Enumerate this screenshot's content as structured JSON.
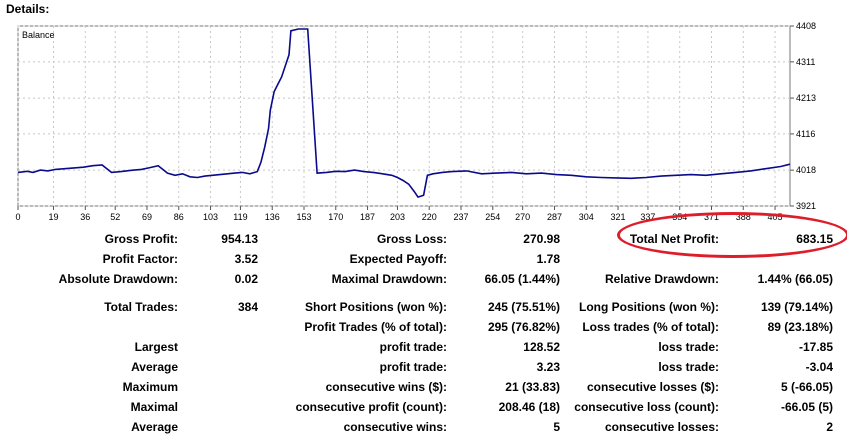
{
  "header": {
    "title": "Details:"
  },
  "chart_data": {
    "type": "line",
    "legend": "Balance",
    "x_ticks": [
      "0",
      "19",
      "36",
      "52",
      "69",
      "86",
      "103",
      "119",
      "136",
      "153",
      "170",
      "187",
      "203",
      "220",
      "237",
      "254",
      "270",
      "287",
      "304",
      "321",
      "337",
      "354",
      "371",
      "388",
      "405"
    ],
    "y_ticks": [
      "4408",
      "4311",
      "4213",
      "4116",
      "4018",
      "3921"
    ],
    "xlim": [
      0,
      413
    ],
    "ylim": [
      3921,
      4408
    ],
    "series": [
      {
        "color": "#0a0a8c",
        "x": [
          0,
          5,
          8,
          12,
          16,
          20,
          25,
          30,
          35,
          40,
          45,
          50,
          55,
          58,
          62,
          66,
          70,
          75,
          80,
          84,
          88,
          92,
          96,
          100,
          104,
          108,
          112,
          116,
          120,
          124,
          128,
          130,
          132,
          134,
          135,
          137,
          139,
          141,
          143,
          145,
          146,
          150,
          155,
          160,
          165,
          170,
          175,
          180,
          185,
          190,
          195,
          200,
          203,
          206,
          209,
          212,
          214,
          217,
          219,
          222,
          227,
          232,
          240,
          248,
          256,
          264,
          272,
          280,
          288,
          296,
          304,
          312,
          320,
          328,
          336,
          344,
          352,
          360,
          368,
          376,
          384,
          392,
          400,
          408,
          413
        ],
        "y": [
          4012,
          4015,
          4012,
          4018,
          4016,
          4020,
          4022,
          4024,
          4026,
          4030,
          4032,
          4012,
          4014,
          4016,
          4018,
          4020,
          4024,
          4030,
          4010,
          4004,
          4008,
          4000,
          3998,
          4002,
          4004,
          4006,
          4008,
          4010,
          4012,
          4008,
          4014,
          4040,
          4080,
          4130,
          4180,
          4230,
          4250,
          4270,
          4300,
          4330,
          4395,
          4400,
          4400,
          4010,
          4012,
          4015,
          4014,
          4018,
          4014,
          4012,
          4008,
          4004,
          3998,
          3990,
          3980,
          3960,
          3945,
          3950,
          4004,
          4008,
          4012,
          4014,
          4016,
          4008,
          4010,
          4012,
          4008,
          4010,
          4006,
          4004,
          4000,
          3998,
          3997,
          3996,
          3998,
          4002,
          4004,
          4006,
          4004,
          4008,
          4012,
          4016,
          4022,
          4028,
          4034
        ]
      }
    ]
  },
  "stats": {
    "rows": [
      [
        {
          "label": "Gross Profit:",
          "value": "954.13"
        },
        {
          "label": "Gross Loss:",
          "value": "270.98"
        },
        {
          "label": "Total Net Profit:",
          "value": "683.15"
        }
      ],
      [
        {
          "label": "Profit Factor:",
          "value": "3.52"
        },
        {
          "label": "Expected Payoff:",
          "value": "1.78"
        },
        {
          "label": "",
          "value": ""
        }
      ],
      [
        {
          "label": "Absolute Drawdown:",
          "value": "0.02"
        },
        {
          "label": "Maximal Drawdown:",
          "value": "66.05 (1.44%)"
        },
        {
          "label": "Relative Drawdown:",
          "value": "1.44% (66.05)"
        }
      ],
      [
        {
          "label": "Total Trades:",
          "value": "384"
        },
        {
          "label": "Short Positions (won %):",
          "value": "245 (75.51%)"
        },
        {
          "label": "Long Positions (won %):",
          "value": "139 (79.14%)"
        }
      ],
      [
        {
          "label": "",
          "value": ""
        },
        {
          "label": "Profit Trades (% of total):",
          "value": "295 (76.82%)"
        },
        {
          "label": "Loss trades (% of total):",
          "value": "89 (23.18%)"
        }
      ],
      [
        {
          "label": "Largest",
          "value": ""
        },
        {
          "label": "profit trade:",
          "value": "128.52"
        },
        {
          "label": "loss trade:",
          "value": "-17.85"
        }
      ],
      [
        {
          "label": "Average",
          "value": ""
        },
        {
          "label": "profit trade:",
          "value": "3.23"
        },
        {
          "label": "loss trade:",
          "value": "-3.04"
        }
      ],
      [
        {
          "label": "Maximum",
          "value": ""
        },
        {
          "label": "consecutive wins ($):",
          "value": "21 (33.83)"
        },
        {
          "label": "consecutive losses ($):",
          "value": "5 (-66.05)"
        }
      ],
      [
        {
          "label": "Maximal",
          "value": ""
        },
        {
          "label": "consecutive profit (count):",
          "value": "208.46 (18)"
        },
        {
          "label": "consecutive loss (count):",
          "value": "-66.05 (5)"
        }
      ],
      [
        {
          "label": "Average",
          "value": ""
        },
        {
          "label": "consecutive wins:",
          "value": "5"
        },
        {
          "label": "consecutive losses:",
          "value": "2"
        }
      ]
    ]
  },
  "colors": {
    "highlight": "#dd1e2a",
    "grid": "#c8c8c8",
    "series": "#0a0a8c"
  }
}
